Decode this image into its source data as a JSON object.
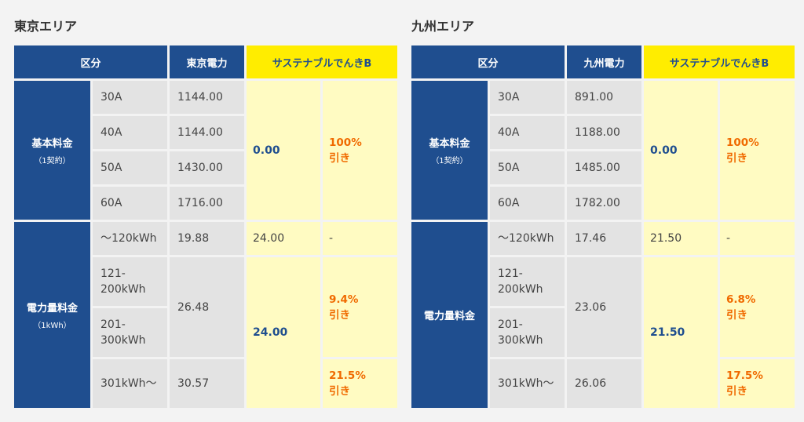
{
  "areas": [
    {
      "title": "東京エリア",
      "header": {
        "category": "区分",
        "utility": "東京電力",
        "plan": "サステナブルでんきB"
      },
      "basic": {
        "label": "基本料金",
        "sub": "（1契約）",
        "rows": [
          {
            "amp": "30A",
            "price": "1144.00"
          },
          {
            "amp": "40A",
            "price": "1144.00"
          },
          {
            "amp": "50A",
            "price": "1430.00"
          },
          {
            "amp": "60A",
            "price": "1716.00"
          }
        ],
        "plan_price": "0.00",
        "discount": [
          "100%",
          "引き"
        ]
      },
      "energy": {
        "label": "電力量料金",
        "sub": "（1kWh）",
        "tier1": {
          "range": "〜120kWh",
          "price": "19.88",
          "plan_price": "24.00",
          "discount": "-"
        },
        "tier2": {
          "range": [
            "121-",
            "200kWh"
          ]
        },
        "tier3": {
          "range": [
            "201-",
            "300kWh"
          ]
        },
        "tier23_price": "26.48",
        "tier23_discount": [
          "9.4%",
          "引き"
        ],
        "tier4": {
          "range": "301kWh〜",
          "price": "30.57",
          "discount": [
            "21.5%",
            "引き"
          ]
        },
        "plan_price_234": "24.00"
      }
    },
    {
      "title": "九州エリア",
      "header": {
        "category": "区分",
        "utility": "九州電力",
        "plan": "サステナブルでんきB"
      },
      "basic": {
        "label": "基本料金",
        "sub": "（1契約）",
        "rows": [
          {
            "amp": "30A",
            "price": "891.00"
          },
          {
            "amp": "40A",
            "price": "1188.00"
          },
          {
            "amp": "50A",
            "price": "1485.00"
          },
          {
            "amp": "60A",
            "price": "1782.00"
          }
        ],
        "plan_price": "0.00",
        "discount": [
          "100%",
          "引き"
        ]
      },
      "energy": {
        "label": "電力量料金",
        "sub": "",
        "tier1": {
          "range": "〜120kWh",
          "price": "17.46",
          "plan_price": "21.50",
          "discount": "-"
        },
        "tier2": {
          "range": [
            "121-",
            "200kWh"
          ]
        },
        "tier3": {
          "range": [
            "201-",
            "300kWh"
          ]
        },
        "tier23_price": "23.06",
        "tier23_discount": [
          "6.8%",
          "引き"
        ],
        "tier4": {
          "range": "301kWh〜",
          "price": "26.06",
          "discount": [
            "17.5%",
            "引き"
          ]
        },
        "plan_price_234": "21.50"
      }
    }
  ]
}
